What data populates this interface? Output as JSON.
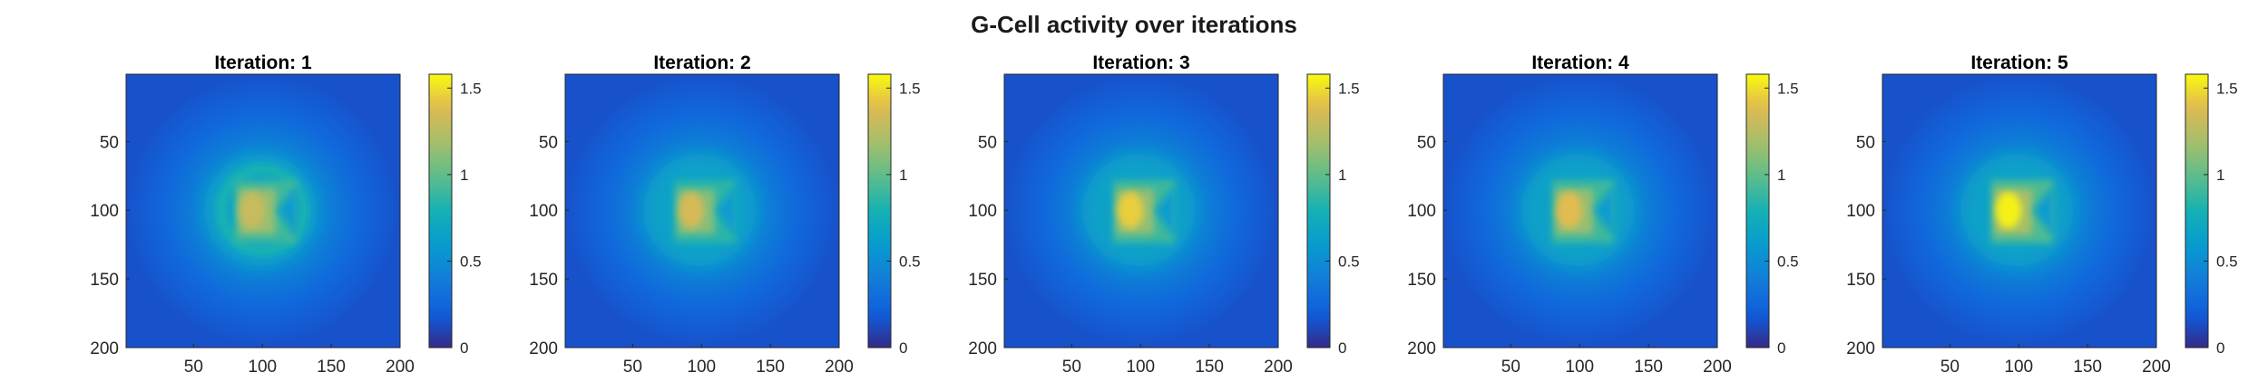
{
  "chart_data": {
    "type": "heatmap",
    "title": "G-Cell activity over iterations",
    "colormap": "parula",
    "xlabel": "",
    "ylabel": "",
    "xlim": [
      1,
      200
    ],
    "ylim": [
      1,
      200
    ],
    "y_direction": "reversed",
    "grid": false,
    "x_ticks": [
      "50",
      "100",
      "150",
      "200"
    ],
    "y_ticks": [
      "50",
      "100",
      "150",
      "200"
    ],
    "colorbar": {
      "limits": [
        0,
        1.58
      ],
      "ticks": [
        "0",
        "0.5",
        "1",
        "1.5"
      ]
    },
    "background_value": 0.15,
    "panels": [
      {
        "title": "Iteration: 1",
        "peak": 1.3,
        "square_level": 1.05,
        "halo_level": 0.5,
        "ring": true,
        "notch": true
      },
      {
        "title": "Iteration: 2",
        "peak": 1.35,
        "square_level": 1.0,
        "halo_level": 0.5,
        "ring": false,
        "notch": true
      },
      {
        "title": "Iteration: 3",
        "peak": 1.45,
        "square_level": 1.05,
        "halo_level": 0.5,
        "ring": false,
        "notch": true
      },
      {
        "title": "Iteration: 4",
        "peak": 1.4,
        "square_level": 1.05,
        "halo_level": 0.5,
        "ring": false,
        "notch": true
      },
      {
        "title": "Iteration: 5",
        "peak": 1.55,
        "square_level": 1.1,
        "halo_level": 0.5,
        "ring": false,
        "notch": true
      }
    ]
  }
}
